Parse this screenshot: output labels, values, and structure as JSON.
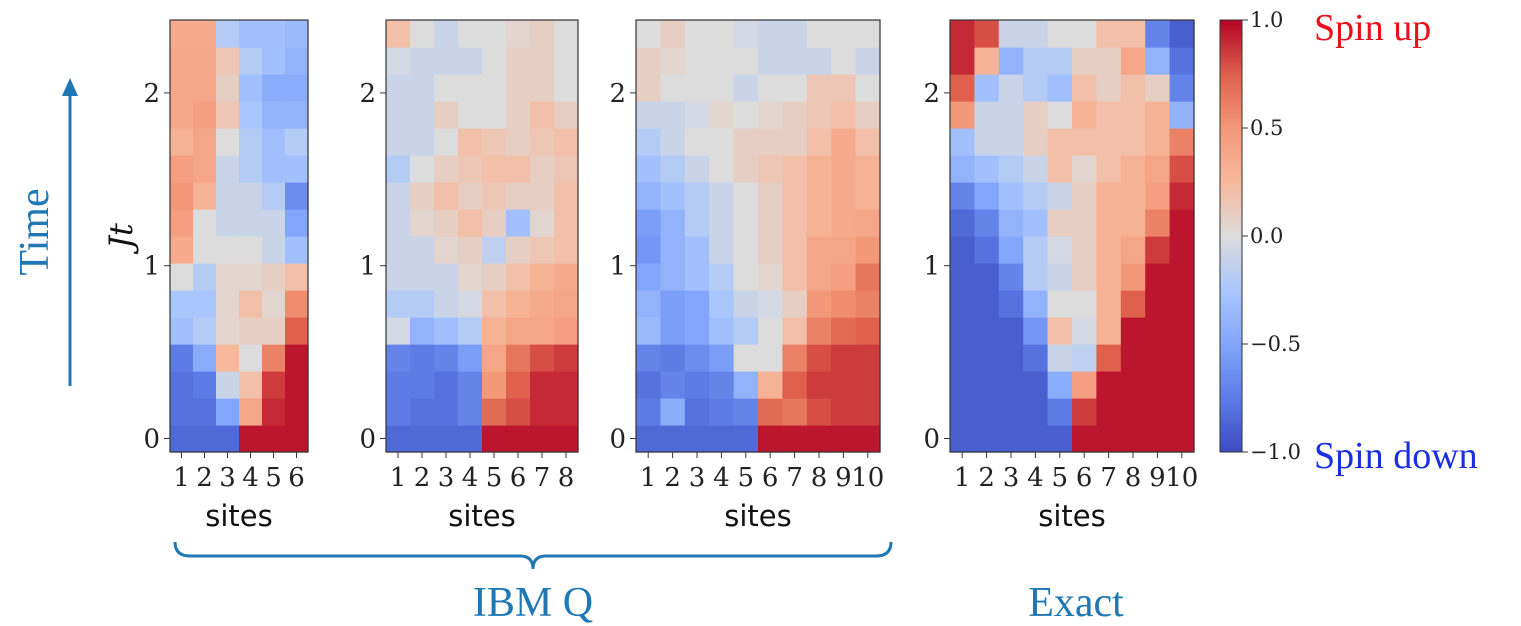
{
  "labels": {
    "time": "Time",
    "jt": "Jt",
    "ibm": "IBM Q",
    "exact": "Exact",
    "spin_up": "Spin up",
    "spin_down": "Spin down"
  },
  "colors": {
    "accent_blue": "#1f77b4",
    "spin_up": "#e8101a",
    "spin_down": "#1a2fe0"
  },
  "colorbar": {
    "colormap": "coolwarm",
    "min": -1.0,
    "max": 1.0,
    "ticks": [
      "1.0",
      "0.5",
      "0.0",
      "−0.5",
      "−1.0"
    ]
  },
  "chart_data": [
    {
      "type": "heatmap",
      "group": "IBM Q",
      "xlabel": "sites",
      "ylabel": "Jt",
      "x_ticks": [
        "1",
        "2",
        "3",
        "4",
        "5",
        "6"
      ],
      "y_ticks": [
        "0",
        "1",
        "2"
      ],
      "y_range": [
        0,
        2.5
      ],
      "time_step": 0.1,
      "values": [
        [
          -0.85,
          -0.85,
          -0.85,
          0.95,
          0.95,
          0.95
        ],
        [
          -0.8,
          -0.8,
          -0.5,
          0.4,
          0.9,
          0.95
        ],
        [
          -0.8,
          -0.75,
          -0.1,
          0.2,
          0.85,
          0.95
        ],
        [
          -0.75,
          -0.45,
          0.25,
          0.0,
          0.6,
          0.95
        ],
        [
          -0.3,
          -0.2,
          0.05,
          0.1,
          0.1,
          0.75
        ],
        [
          -0.25,
          -0.25,
          0.05,
          0.2,
          0.05,
          0.55
        ],
        [
          0.0,
          -0.2,
          0.05,
          0.05,
          0.1,
          0.2
        ],
        [
          0.35,
          0.0,
          0.0,
          0.0,
          -0.1,
          -0.3
        ],
        [
          0.45,
          0.0,
          -0.1,
          -0.1,
          -0.1,
          -0.5
        ],
        [
          0.5,
          0.3,
          -0.1,
          -0.1,
          -0.2,
          -0.65
        ],
        [
          0.45,
          0.4,
          -0.1,
          -0.2,
          -0.3,
          -0.3
        ],
        [
          0.3,
          0.4,
          0.0,
          -0.2,
          -0.3,
          -0.2
        ],
        [
          0.4,
          0.45,
          0.15,
          -0.25,
          -0.4,
          -0.4
        ],
        [
          0.4,
          0.4,
          0.1,
          -0.3,
          -0.45,
          -0.45
        ],
        [
          0.4,
          0.4,
          0.15,
          -0.2,
          -0.3,
          -0.4
        ],
        [
          0.35,
          0.35,
          -0.2,
          -0.3,
          -0.3,
          -0.35
        ]
      ]
    },
    {
      "type": "heatmap",
      "group": "IBM Q",
      "xlabel": "sites",
      "x_ticks": [
        "1",
        "2",
        "3",
        "4",
        "5",
        "6",
        "7",
        "8"
      ],
      "y_ticks": [
        "0",
        "1",
        "2"
      ],
      "y_range": [
        0,
        2.5
      ],
      "time_step": 0.1,
      "values": [
        [
          -0.85,
          -0.85,
          -0.85,
          -0.85,
          0.95,
          0.95,
          0.95,
          0.95
        ],
        [
          -0.75,
          -0.8,
          -0.8,
          -0.7,
          0.7,
          0.8,
          0.9,
          0.9
        ],
        [
          -0.75,
          -0.75,
          -0.8,
          -0.7,
          0.5,
          0.75,
          0.9,
          0.9
        ],
        [
          -0.7,
          -0.75,
          -0.7,
          -0.55,
          0.4,
          0.65,
          0.8,
          0.85
        ],
        [
          -0.05,
          -0.4,
          -0.3,
          -0.2,
          0.3,
          0.4,
          0.4,
          0.45
        ],
        [
          -0.2,
          -0.2,
          -0.1,
          -0.05,
          0.2,
          0.3,
          0.35,
          0.4
        ],
        [
          -0.1,
          -0.1,
          -0.1,
          0.05,
          0.1,
          0.2,
          0.3,
          0.35
        ],
        [
          -0.1,
          -0.1,
          0.05,
          0.1,
          -0.15,
          0.1,
          0.15,
          0.2
        ],
        [
          -0.1,
          0.05,
          0.1,
          0.2,
          0.1,
          -0.3,
          0.05,
          0.2
        ],
        [
          -0.1,
          0.1,
          0.2,
          0.1,
          0.15,
          0.1,
          0.1,
          0.2
        ],
        [
          -0.2,
          0.0,
          0.1,
          0.15,
          0.2,
          0.2,
          0.1,
          0.15
        ],
        [
          -0.1,
          -0.1,
          0.0,
          0.2,
          0.15,
          0.1,
          0.15,
          0.2
        ],
        [
          -0.1,
          -0.1,
          0.1,
          0.0,
          0.0,
          0.1,
          0.2,
          0.1
        ],
        [
          -0.1,
          -0.1,
          0.0,
          0.0,
          0.0,
          0.1,
          0.1,
          0.0
        ],
        [
          -0.05,
          -0.1,
          -0.1,
          -0.1,
          0.0,
          0.1,
          0.1,
          0.0
        ],
        [
          0.2,
          0.0,
          -0.1,
          0.0,
          0.0,
          0.05,
          0.1,
          0.0
        ]
      ]
    },
    {
      "type": "heatmap",
      "group": "IBM Q",
      "xlabel": "sites",
      "x_ticks": [
        "1",
        "2",
        "3",
        "4",
        "5",
        "6",
        "7",
        "8",
        "9",
        "10"
      ],
      "y_ticks": [
        "0",
        "1",
        "2"
      ],
      "y_range": [
        0,
        2.5
      ],
      "time_step": 0.1,
      "values": [
        [
          -0.85,
          -0.85,
          -0.85,
          -0.85,
          -0.85,
          0.95,
          0.95,
          0.95,
          0.95,
          0.95
        ],
        [
          -0.75,
          -0.45,
          -0.8,
          -0.75,
          -0.7,
          0.7,
          0.65,
          0.8,
          0.85,
          0.85
        ],
        [
          -0.8,
          -0.7,
          -0.75,
          -0.7,
          -0.4,
          0.3,
          0.75,
          0.85,
          0.85,
          0.85
        ],
        [
          -0.7,
          -0.75,
          -0.65,
          -0.55,
          0.0,
          0.0,
          0.6,
          0.8,
          0.85,
          0.85
        ],
        [
          -0.35,
          -0.55,
          -0.5,
          -0.3,
          -0.2,
          0.0,
          0.2,
          0.6,
          0.7,
          0.75
        ],
        [
          -0.4,
          -0.55,
          -0.5,
          -0.25,
          -0.1,
          -0.05,
          0.1,
          0.5,
          0.55,
          0.6
        ],
        [
          -0.5,
          -0.4,
          -0.3,
          -0.2,
          0.0,
          0.05,
          0.2,
          0.4,
          0.45,
          0.65
        ],
        [
          -0.6,
          -0.4,
          -0.3,
          -0.1,
          0.0,
          0.1,
          0.2,
          0.4,
          0.4,
          0.5
        ],
        [
          -0.55,
          -0.4,
          -0.2,
          -0.1,
          0.0,
          0.1,
          0.2,
          0.3,
          0.35,
          0.4
        ],
        [
          -0.4,
          -0.3,
          -0.2,
          -0.1,
          0.0,
          0.1,
          0.2,
          0.3,
          0.35,
          0.3
        ],
        [
          -0.3,
          -0.2,
          -0.1,
          0.0,
          0.1,
          0.15,
          0.2,
          0.3,
          0.35,
          0.3
        ],
        [
          -0.2,
          -0.1,
          0.0,
          0.0,
          0.1,
          0.1,
          0.1,
          0.2,
          0.35,
          0.2
        ],
        [
          -0.1,
          -0.1,
          -0.05,
          0.05,
          0.0,
          0.05,
          0.1,
          0.15,
          0.2,
          0.1
        ],
        [
          0.1,
          0.0,
          0.0,
          0.0,
          -0.1,
          0.0,
          0.0,
          0.15,
          0.15,
          0.0
        ],
        [
          0.1,
          0.05,
          0.0,
          0.0,
          0.0,
          -0.1,
          -0.1,
          -0.1,
          0.0,
          -0.1
        ],
        [
          0.0,
          0.1,
          0.0,
          0.0,
          -0.05,
          -0.1,
          -0.1,
          0.0,
          0.0,
          0.0
        ]
      ]
    },
    {
      "type": "heatmap",
      "group": "Exact",
      "xlabel": "sites",
      "x_ticks": [
        "1",
        "2",
        "3",
        "4",
        "5",
        "6",
        "7",
        "8",
        "9",
        "10"
      ],
      "y_ticks": [
        "0",
        "1",
        "2"
      ],
      "y_range": [
        0,
        2.5
      ],
      "time_step": 0.1,
      "values": [
        [
          -0.9,
          -0.9,
          -0.9,
          -0.9,
          -0.9,
          0.95,
          0.95,
          0.95,
          0.95,
          0.95
        ],
        [
          -0.9,
          -0.9,
          -0.9,
          -0.9,
          -0.75,
          0.85,
          0.95,
          0.95,
          0.95,
          0.95
        ],
        [
          -0.9,
          -0.9,
          -0.9,
          -0.9,
          -0.45,
          0.45,
          0.95,
          0.95,
          0.95,
          0.95
        ],
        [
          -0.9,
          -0.9,
          -0.9,
          -0.8,
          -0.1,
          -0.15,
          0.75,
          0.95,
          0.95,
          0.95
        ],
        [
          -0.9,
          -0.9,
          -0.9,
          -0.6,
          0.2,
          -0.05,
          0.3,
          0.95,
          0.95,
          0.95
        ],
        [
          -0.9,
          -0.9,
          -0.8,
          -0.4,
          0.0,
          0.0,
          0.3,
          0.75,
          0.95,
          0.95
        ],
        [
          -0.9,
          -0.9,
          -0.7,
          -0.2,
          -0.1,
          0.1,
          0.3,
          0.5,
          0.95,
          0.95
        ],
        [
          -0.9,
          -0.8,
          -0.5,
          -0.2,
          -0.05,
          0.1,
          0.3,
          0.4,
          0.85,
          0.95
        ],
        [
          -0.85,
          -0.7,
          -0.4,
          -0.3,
          0.1,
          0.1,
          0.3,
          0.3,
          0.6,
          0.95
        ],
        [
          -0.7,
          -0.5,
          -0.3,
          -0.2,
          -0.1,
          0.1,
          0.3,
          0.3,
          0.45,
          0.9
        ],
        [
          -0.4,
          -0.3,
          -0.2,
          -0.1,
          0.2,
          0.05,
          0.2,
          0.3,
          0.4,
          0.8
        ],
        [
          -0.3,
          -0.1,
          -0.1,
          0.1,
          0.2,
          0.2,
          0.2,
          0.2,
          0.3,
          0.6
        ],
        [
          0.5,
          -0.1,
          -0.1,
          0.1,
          0.0,
          0.3,
          0.2,
          0.2,
          0.3,
          -0.4
        ],
        [
          0.75,
          -0.3,
          -0.1,
          -0.2,
          -0.3,
          0.2,
          0.1,
          0.2,
          0.1,
          -0.7
        ],
        [
          0.9,
          0.3,
          -0.4,
          -0.2,
          -0.2,
          0.1,
          0.1,
          0.4,
          -0.4,
          -0.8
        ],
        [
          0.9,
          0.8,
          -0.1,
          -0.1,
          0.0,
          0.0,
          0.2,
          0.2,
          -0.7,
          -0.9
        ]
      ]
    }
  ]
}
